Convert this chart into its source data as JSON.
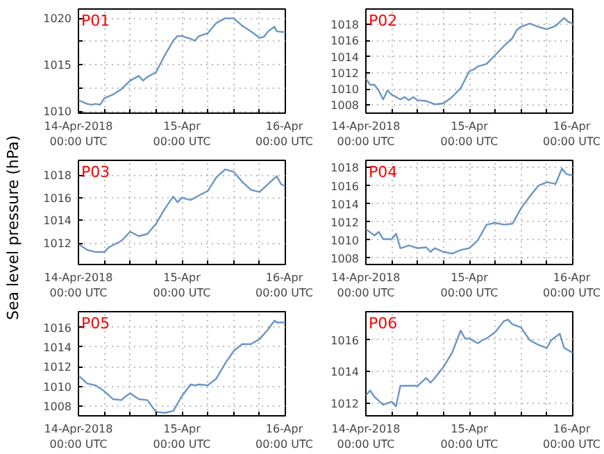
{
  "chart_data": [
    {
      "type": "line",
      "title": "P01",
      "x": [
        "2018-04-14T00:00",
        "2018-04-14T02:00",
        "2018-04-14T03:00",
        "2018-04-14T04:00",
        "2018-04-14T05:00",
        "2018-04-14T06:00",
        "2018-04-14T08:00",
        "2018-04-14T10:00",
        "2018-04-14T12:00",
        "2018-04-14T14:00",
        "2018-04-14T15:00",
        "2018-04-14T16:00",
        "2018-04-14T18:00",
        "2018-04-14T20:00",
        "2018-04-14T22:00",
        "2018-04-14T23:00",
        "2018-04-15T00:00",
        "2018-04-15T02:00",
        "2018-04-15T03:00",
        "2018-04-15T04:00",
        "2018-04-15T06:00",
        "2018-04-15T08:00",
        "2018-04-15T10:00",
        "2018-04-15T12:00",
        "2018-04-15T14:00",
        "2018-04-15T16:00",
        "2018-04-15T18:00",
        "2018-04-15T19:00",
        "2018-04-15T20:00",
        "2018-04-15T21:30",
        "2018-04-15T22:00",
        "2018-04-16T00:00"
      ],
      "series": [
        {
          "color": "#6a95c4",
          "values": [
            1011.2,
            1010.8,
            1010.7,
            1010.8,
            1010.7,
            1011.4,
            1011.8,
            1012.4,
            1013.3,
            1013.8,
            1013.3,
            1013.7,
            1014.2,
            1016.0,
            1017.6,
            1018.1,
            1018.1,
            1017.8,
            1017.6,
            1018.1,
            1018.4,
            1019.5,
            1020.0,
            1020.0,
            1019.2,
            1018.6,
            1017.9,
            1018.0,
            1018.6,
            1019.1,
            1018.6,
            1018.5
          ]
        }
      ],
      "xlim": [
        "2018-04-14T00:00",
        "2018-04-16T00:00"
      ],
      "ylim": [
        1009.8,
        1021
      ],
      "yticks": [
        1010,
        {
          "value": 1012.5,
          "label": null
        },
        1015,
        {
          "value": 1017.5,
          "label": null
        },
        1020
      ],
      "xticks": [
        {
          "value": "2018-04-14T00:00",
          "label": "14-Apr-2018\n00:00 UTC"
        },
        {
          "value": "2018-04-14T06:00",
          "label": null
        },
        {
          "value": "2018-04-14T12:00",
          "label": null
        },
        {
          "value": "2018-04-14T18:00",
          "label": null
        },
        {
          "value": "2018-04-15T00:00",
          "label": "15-Apr\n00:00 UTC"
        },
        {
          "value": "2018-04-15T06:00",
          "label": null
        },
        {
          "value": "2018-04-15T12:00",
          "label": null
        },
        {
          "value": "2018-04-15T18:00",
          "label": null
        },
        {
          "value": "2018-04-16T00:00",
          "label": "16-Apr\n00:00 UTC"
        }
      ],
      "grid": true
    },
    {
      "type": "line",
      "title": "P02",
      "x": [
        "2018-04-14T00:00",
        "2018-04-14T01:00",
        "2018-04-14T02:00",
        "2018-04-14T03:00",
        "2018-04-14T04:00",
        "2018-04-14T05:00",
        "2018-04-14T06:00",
        "2018-04-14T08:00",
        "2018-04-14T09:00",
        "2018-04-14T10:00",
        "2018-04-14T11:00",
        "2018-04-14T12:00",
        "2018-04-14T14:00",
        "2018-04-14T16:00",
        "2018-04-14T18:00",
        "2018-04-14T20:00",
        "2018-04-14T22:00",
        "2018-04-15T00:00",
        "2018-04-15T01:00",
        "2018-04-15T02:00",
        "2018-04-15T04:00",
        "2018-04-15T06:00",
        "2018-04-15T08:00",
        "2018-04-15T10:00",
        "2018-04-15T11:00",
        "2018-04-15T12:00",
        "2018-04-15T14:00",
        "2018-04-15T16:00",
        "2018-04-15T18:00",
        "2018-04-15T20:00",
        "2018-04-15T22:00",
        "2018-04-15T23:00",
        "2018-04-16T00:00"
      ],
      "series": [
        {
          "color": "#6a95c4",
          "values": [
            1011.3,
            1010.5,
            1010.5,
            1009.8,
            1008.7,
            1009.8,
            1009.3,
            1008.7,
            1009.0,
            1008.6,
            1009.0,
            1008.6,
            1008.5,
            1008.1,
            1008.2,
            1009.0,
            1010.1,
            1012.2,
            1012.4,
            1012.8,
            1013.1,
            1014.2,
            1015.3,
            1016.3,
            1017.3,
            1017.7,
            1018.1,
            1017.7,
            1017.4,
            1017.8,
            1018.8,
            1018.3,
            1018.1
          ]
        }
      ],
      "xlim": [
        "2018-04-14T00:00",
        "2018-04-16T00:00"
      ],
      "ylim": [
        1007,
        1019.9
      ],
      "yticks": [
        1008,
        1010,
        1012,
        1014,
        1016,
        1018
      ],
      "xticks": [
        {
          "value": "2018-04-14T00:00",
          "label": "14-Apr-2018\n00:00 UTC"
        },
        {
          "value": "2018-04-14T06:00",
          "label": null
        },
        {
          "value": "2018-04-14T12:00",
          "label": null
        },
        {
          "value": "2018-04-14T18:00",
          "label": null
        },
        {
          "value": "2018-04-15T00:00",
          "label": "15-Apr\n00:00 UTC"
        },
        {
          "value": "2018-04-15T06:00",
          "label": null
        },
        {
          "value": "2018-04-15T12:00",
          "label": null
        },
        {
          "value": "2018-04-15T18:00",
          "label": null
        },
        {
          "value": "2018-04-16T00:00",
          "label": "16-Apr\n00:00 UTC"
        }
      ],
      "grid": true
    },
    {
      "type": "line",
      "title": "P03",
      "ylabel": "Sea level pressure (hPa)",
      "x": [
        "2018-04-14T00:00",
        "2018-04-14T02:00",
        "2018-04-14T04:00",
        "2018-04-14T06:00",
        "2018-04-14T07:00",
        "2018-04-14T08:00",
        "2018-04-14T10:00",
        "2018-04-14T12:00",
        "2018-04-14T14:00",
        "2018-04-14T16:00",
        "2018-04-14T18:00",
        "2018-04-14T20:00",
        "2018-04-14T22:00",
        "2018-04-14T23:00",
        "2018-04-15T00:00",
        "2018-04-15T02:00",
        "2018-04-15T04:00",
        "2018-04-15T06:00",
        "2018-04-15T08:00",
        "2018-04-15T10:00",
        "2018-04-15T12:00",
        "2018-04-15T14:00",
        "2018-04-15T16:00",
        "2018-04-15T18:00",
        "2018-04-15T20:00",
        "2018-04-15T22:00",
        "2018-04-15T23:00",
        "2018-04-16T00:00"
      ],
      "series": [
        {
          "color": "#6a95c4",
          "values": [
            1011.9,
            1011.4,
            1011.2,
            1011.2,
            1011.6,
            1011.8,
            1012.2,
            1013.0,
            1012.6,
            1012.8,
            1013.7,
            1015.0,
            1016.1,
            1015.6,
            1016.0,
            1015.8,
            1016.2,
            1016.6,
            1017.8,
            1018.5,
            1018.3,
            1017.4,
            1016.7,
            1016.5,
            1017.2,
            1017.9,
            1017.2,
            1017.0
          ]
        }
      ],
      "xlim": [
        "2018-04-14T00:00",
        "2018-04-16T00:00"
      ],
      "ylim": [
        1010.1,
        1019.3
      ],
      "yticks": [
        1012,
        1014,
        1016,
        1018
      ],
      "xticks": [
        {
          "value": "2018-04-14T00:00",
          "label": "14-Apr-2018\n00:00 UTC"
        },
        {
          "value": "2018-04-14T06:00",
          "label": null
        },
        {
          "value": "2018-04-14T12:00",
          "label": null
        },
        {
          "value": "2018-04-14T18:00",
          "label": null
        },
        {
          "value": "2018-04-15T00:00",
          "label": "15-Apr\n00:00 UTC"
        },
        {
          "value": "2018-04-15T06:00",
          "label": null
        },
        {
          "value": "2018-04-15T12:00",
          "label": null
        },
        {
          "value": "2018-04-15T18:00",
          "label": null
        },
        {
          "value": "2018-04-16T00:00",
          "label": "16-Apr\n00:00 UTC"
        }
      ],
      "grid": true
    },
    {
      "type": "line",
      "title": "P04",
      "x": [
        "2018-04-14T00:00",
        "2018-04-14T02:00",
        "2018-04-14T03:00",
        "2018-04-14T04:00",
        "2018-04-14T06:00",
        "2018-04-14T07:00",
        "2018-04-14T08:00",
        "2018-04-14T10:00",
        "2018-04-14T12:00",
        "2018-04-14T14:00",
        "2018-04-14T15:00",
        "2018-04-14T16:00",
        "2018-04-14T18:00",
        "2018-04-14T20:00",
        "2018-04-14T22:00",
        "2018-04-15T00:00",
        "2018-04-15T02:00",
        "2018-04-15T04:00",
        "2018-04-15T06:00",
        "2018-04-15T08:00",
        "2018-04-15T10:00",
        "2018-04-15T12:00",
        "2018-04-15T14:00",
        "2018-04-15T16:00",
        "2018-04-15T18:00",
        "2018-04-15T20:00",
        "2018-04-15T21:30",
        "2018-04-15T22:30",
        "2018-04-16T00:00"
      ],
      "series": [
        {
          "color": "#6a95c4",
          "values": [
            1011.2,
            1010.5,
            1010.9,
            1010.1,
            1010.1,
            1010.7,
            1009.1,
            1009.4,
            1009.1,
            1009.2,
            1008.7,
            1009.1,
            1008.7,
            1008.5,
            1008.9,
            1009.1,
            1010.0,
            1011.7,
            1011.9,
            1011.7,
            1011.8,
            1013.5,
            1014.8,
            1016.0,
            1016.4,
            1016.2,
            1017.9,
            1017.3,
            1017.1
          ]
        }
      ],
      "xlim": [
        "2018-04-14T00:00",
        "2018-04-16T00:00"
      ],
      "ylim": [
        1007.3,
        1018.8
      ],
      "yticks": [
        1008,
        1010,
        1012,
        1014,
        1016,
        1018
      ],
      "xticks": [
        {
          "value": "2018-04-14T00:00",
          "label": "14-Apr-2018\n00:00 UTC"
        },
        {
          "value": "2018-04-14T06:00",
          "label": null
        },
        {
          "value": "2018-04-14T12:00",
          "label": null
        },
        {
          "value": "2018-04-14T18:00",
          "label": null
        },
        {
          "value": "2018-04-15T00:00",
          "label": "15-Apr\n00:00 UTC"
        },
        {
          "value": "2018-04-15T06:00",
          "label": null
        },
        {
          "value": "2018-04-15T12:00",
          "label": null
        },
        {
          "value": "2018-04-15T18:00",
          "label": null
        },
        {
          "value": "2018-04-16T00:00",
          "label": "16-Apr\n00:00 UTC"
        }
      ],
      "grid": true
    },
    {
      "type": "line",
      "title": "P05",
      "x": [
        "2018-04-14T00:00",
        "2018-04-14T02:00",
        "2018-04-14T04:00",
        "2018-04-14T06:00",
        "2018-04-14T08:00",
        "2018-04-14T10:00",
        "2018-04-14T11:00",
        "2018-04-14T12:00",
        "2018-04-14T14:00",
        "2018-04-14T16:00",
        "2018-04-14T18:00",
        "2018-04-14T20:00",
        "2018-04-14T22:00",
        "2018-04-15T00:00",
        "2018-04-15T02:00",
        "2018-04-15T03:00",
        "2018-04-15T04:00",
        "2018-04-15T06:00",
        "2018-04-15T08:00",
        "2018-04-15T10:00",
        "2018-04-15T12:00",
        "2018-04-15T14:00",
        "2018-04-15T16:00",
        "2018-04-15T18:00",
        "2018-04-15T20:00",
        "2018-04-15T21:30",
        "2018-04-15T22:00",
        "2018-04-16T00:00"
      ],
      "series": [
        {
          "color": "#6a95c4",
          "values": [
            1011.1,
            1010.3,
            1010.1,
            1009.5,
            1008.7,
            1008.6,
            1009.0,
            1009.3,
            1008.7,
            1008.6,
            1007.4,
            1007.3,
            1007.5,
            1009.0,
            1010.2,
            1010.1,
            1010.2,
            1010.1,
            1010.8,
            1012.3,
            1013.6,
            1014.3,
            1014.3,
            1014.8,
            1015.8,
            1016.7,
            1016.5,
            1016.5
          ]
        }
      ],
      "xlim": [
        "2018-04-14T00:00",
        "2018-04-16T00:00"
      ],
      "ylim": [
        1007,
        1017.6
      ],
      "yticks": [
        1008,
        1010,
        1012,
        1014,
        1016
      ],
      "xticks": [
        {
          "value": "2018-04-14T00:00",
          "label": "14-Apr-2018\n00:00 UTC"
        },
        {
          "value": "2018-04-14T06:00",
          "label": null
        },
        {
          "value": "2018-04-14T12:00",
          "label": null
        },
        {
          "value": "2018-04-14T18:00",
          "label": null
        },
        {
          "value": "2018-04-15T00:00",
          "label": "15-Apr\n00:00 UTC"
        },
        {
          "value": "2018-04-15T06:00",
          "label": null
        },
        {
          "value": "2018-04-15T12:00",
          "label": null
        },
        {
          "value": "2018-04-15T18:00",
          "label": null
        },
        {
          "value": "2018-04-16T00:00",
          "label": "16-Apr\n00:00 UTC"
        }
      ],
      "grid": true
    },
    {
      "type": "line",
      "title": "P06",
      "x": [
        "2018-04-14T00:00",
        "2018-04-14T01:00",
        "2018-04-14T02:00",
        "2018-04-14T04:00",
        "2018-04-14T06:00",
        "2018-04-14T07:00",
        "2018-04-14T08:00",
        "2018-04-14T10:00",
        "2018-04-14T12:00",
        "2018-04-14T14:00",
        "2018-04-14T15:00",
        "2018-04-14T16:00",
        "2018-04-14T18:00",
        "2018-04-14T20:00",
        "2018-04-14T22:00",
        "2018-04-14T23:00",
        "2018-04-15T00:00",
        "2018-04-15T02:00",
        "2018-04-15T03:00",
        "2018-04-15T04:00",
        "2018-04-15T06:00",
        "2018-04-15T08:00",
        "2018-04-15T09:00",
        "2018-04-15T10:00",
        "2018-04-15T12:00",
        "2018-04-15T14:00",
        "2018-04-15T16:00",
        "2018-04-15T18:00",
        "2018-04-15T19:00",
        "2018-04-15T21:00",
        "2018-04-15T22:00",
        "2018-04-16T00:00"
      ],
      "series": [
        {
          "color": "#6a95c4",
          "values": [
            1012.5,
            1012.8,
            1012.4,
            1011.9,
            1012.1,
            1011.8,
            1013.1,
            1013.1,
            1013.1,
            1013.6,
            1013.3,
            1013.6,
            1014.3,
            1015.2,
            1016.6,
            1016.1,
            1016.1,
            1015.8,
            1016.0,
            1016.1,
            1016.5,
            1017.2,
            1017.3,
            1017.0,
            1016.8,
            1016.0,
            1015.7,
            1015.5,
            1016.0,
            1016.4,
            1015.5,
            1015.2
          ]
        }
      ],
      "xlim": [
        "2018-04-14T00:00",
        "2018-04-16T00:00"
      ],
      "ylim": [
        1011.2,
        1017.8
      ],
      "yticks": [
        1012,
        1014,
        1016
      ],
      "xticks": [
        {
          "value": "2018-04-14T00:00",
          "label": "14-Apr-2018\n00:00 UTC"
        },
        {
          "value": "2018-04-14T06:00",
          "label": null
        },
        {
          "value": "2018-04-14T12:00",
          "label": null
        },
        {
          "value": "2018-04-14T18:00",
          "label": null
        },
        {
          "value": "2018-04-15T00:00",
          "label": "15-Apr\n00:00 UTC"
        },
        {
          "value": "2018-04-15T06:00",
          "label": null
        },
        {
          "value": "2018-04-15T12:00",
          "label": null
        },
        {
          "value": "2018-04-15T18:00",
          "label": null
        },
        {
          "value": "2018-04-16T00:00",
          "label": "16-Apr\n00:00 UTC"
        }
      ],
      "grid": true
    }
  ]
}
